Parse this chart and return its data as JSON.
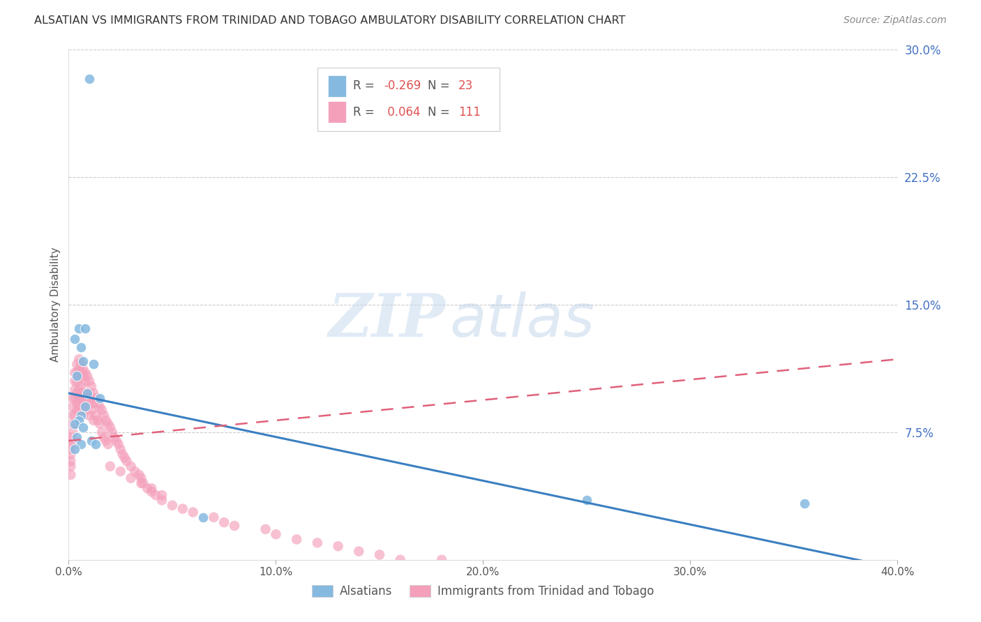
{
  "title": "ALSATIAN VS IMMIGRANTS FROM TRINIDAD AND TOBAGO AMBULATORY DISABILITY CORRELATION CHART",
  "source": "Source: ZipAtlas.com",
  "ylabel": "Ambulatory Disability",
  "series1_label": "Alsatians",
  "series2_label": "Immigrants from Trinidad and Tobago",
  "R1": -0.269,
  "N1": 23,
  "R2": 0.064,
  "N2": 111,
  "color1": "#85b9e0",
  "color2": "#f4a0bb",
  "trend1_color": "#3a7fc1",
  "trend2_color": "#e0607a",
  "xmin": 0.0,
  "xmax": 0.4,
  "ymin": 0.0,
  "ymax": 0.3,
  "yticks": [
    0.075,
    0.15,
    0.225,
    0.3
  ],
  "ytick_labels": [
    "7.5%",
    "15.0%",
    "22.5%",
    "30.0%"
  ],
  "xticks": [
    0.0,
    0.1,
    0.2,
    0.3,
    0.4
  ],
  "xtick_labels": [
    "0.0%",
    "10.0%",
    "20.0%",
    "30.0%",
    "40.0%"
  ],
  "watermark_zip": "ZIP",
  "watermark_atlas": "atlas",
  "background_color": "#ffffff",
  "grid_color": "#cccccc",
  "series1_x": [
    0.01,
    0.005,
    0.008,
    0.012,
    0.003,
    0.006,
    0.007,
    0.004,
    0.009,
    0.015,
    0.008,
    0.006,
    0.005,
    0.003,
    0.007,
    0.25,
    0.355,
    0.065,
    0.004,
    0.006,
    0.003,
    0.011,
    0.013
  ],
  "series1_y": [
    0.283,
    0.136,
    0.136,
    0.115,
    0.13,
    0.125,
    0.117,
    0.108,
    0.098,
    0.095,
    0.09,
    0.085,
    0.082,
    0.08,
    0.078,
    0.035,
    0.033,
    0.025,
    0.072,
    0.068,
    0.065,
    0.07,
    0.068
  ],
  "series2_x": [
    0.001,
    0.001,
    0.001,
    0.001,
    0.001,
    0.001,
    0.001,
    0.002,
    0.002,
    0.002,
    0.002,
    0.002,
    0.002,
    0.003,
    0.003,
    0.003,
    0.003,
    0.003,
    0.003,
    0.004,
    0.004,
    0.004,
    0.004,
    0.004,
    0.004,
    0.005,
    0.005,
    0.005,
    0.005,
    0.005,
    0.005,
    0.006,
    0.006,
    0.006,
    0.006,
    0.006,
    0.007,
    0.007,
    0.007,
    0.007,
    0.007,
    0.008,
    0.008,
    0.008,
    0.008,
    0.009,
    0.009,
    0.009,
    0.01,
    0.01,
    0.01,
    0.01,
    0.011,
    0.011,
    0.011,
    0.012,
    0.012,
    0.012,
    0.013,
    0.013,
    0.014,
    0.014,
    0.015,
    0.015,
    0.016,
    0.016,
    0.017,
    0.017,
    0.018,
    0.018,
    0.019,
    0.019,
    0.02,
    0.021,
    0.022,
    0.023,
    0.024,
    0.025,
    0.026,
    0.027,
    0.028,
    0.03,
    0.032,
    0.034,
    0.035,
    0.036,
    0.038,
    0.04,
    0.042,
    0.045,
    0.05,
    0.055,
    0.06,
    0.07,
    0.075,
    0.08,
    0.095,
    0.1,
    0.11,
    0.12,
    0.13,
    0.14,
    0.15,
    0.16,
    0.18,
    0.02,
    0.025,
    0.03,
    0.035,
    0.04,
    0.045
  ],
  "series2_y": [
    0.072,
    0.068,
    0.065,
    0.062,
    0.058,
    0.055,
    0.05,
    0.095,
    0.09,
    0.085,
    0.08,
    0.075,
    0.07,
    0.11,
    0.105,
    0.1,
    0.095,
    0.085,
    0.08,
    0.115,
    0.11,
    0.105,
    0.098,
    0.092,
    0.088,
    0.118,
    0.112,
    0.108,
    0.1,
    0.095,
    0.09,
    0.115,
    0.11,
    0.102,
    0.095,
    0.088,
    0.112,
    0.108,
    0.098,
    0.092,
    0.085,
    0.11,
    0.105,
    0.095,
    0.088,
    0.108,
    0.098,
    0.09,
    0.105,
    0.098,
    0.092,
    0.085,
    0.102,
    0.095,
    0.088,
    0.098,
    0.092,
    0.082,
    0.095,
    0.085,
    0.092,
    0.082,
    0.09,
    0.08,
    0.088,
    0.075,
    0.085,
    0.072,
    0.082,
    0.07,
    0.08,
    0.068,
    0.078,
    0.075,
    0.072,
    0.07,
    0.068,
    0.065,
    0.062,
    0.06,
    0.058,
    0.055,
    0.052,
    0.05,
    0.048,
    0.045,
    0.042,
    0.04,
    0.038,
    0.035,
    0.032,
    0.03,
    0.028,
    0.025,
    0.022,
    0.02,
    0.018,
    0.015,
    0.012,
    0.01,
    0.008,
    0.005,
    0.003,
    0.0,
    0.0,
    0.055,
    0.052,
    0.048,
    0.045,
    0.042,
    0.038
  ],
  "trend1_x0": 0.0,
  "trend1_y0": 0.098,
  "trend1_x1": 0.4,
  "trend1_y1": -0.005,
  "trend2_x0": 0.0,
  "trend2_y0": 0.07,
  "trend2_x1": 0.4,
  "trend2_y1": 0.118,
  "legend_R1_label": "R = -0.269",
  "legend_N1_label": "N = 23",
  "legend_R2_label": "R =  0.064",
  "legend_N2_label": "N = 111"
}
